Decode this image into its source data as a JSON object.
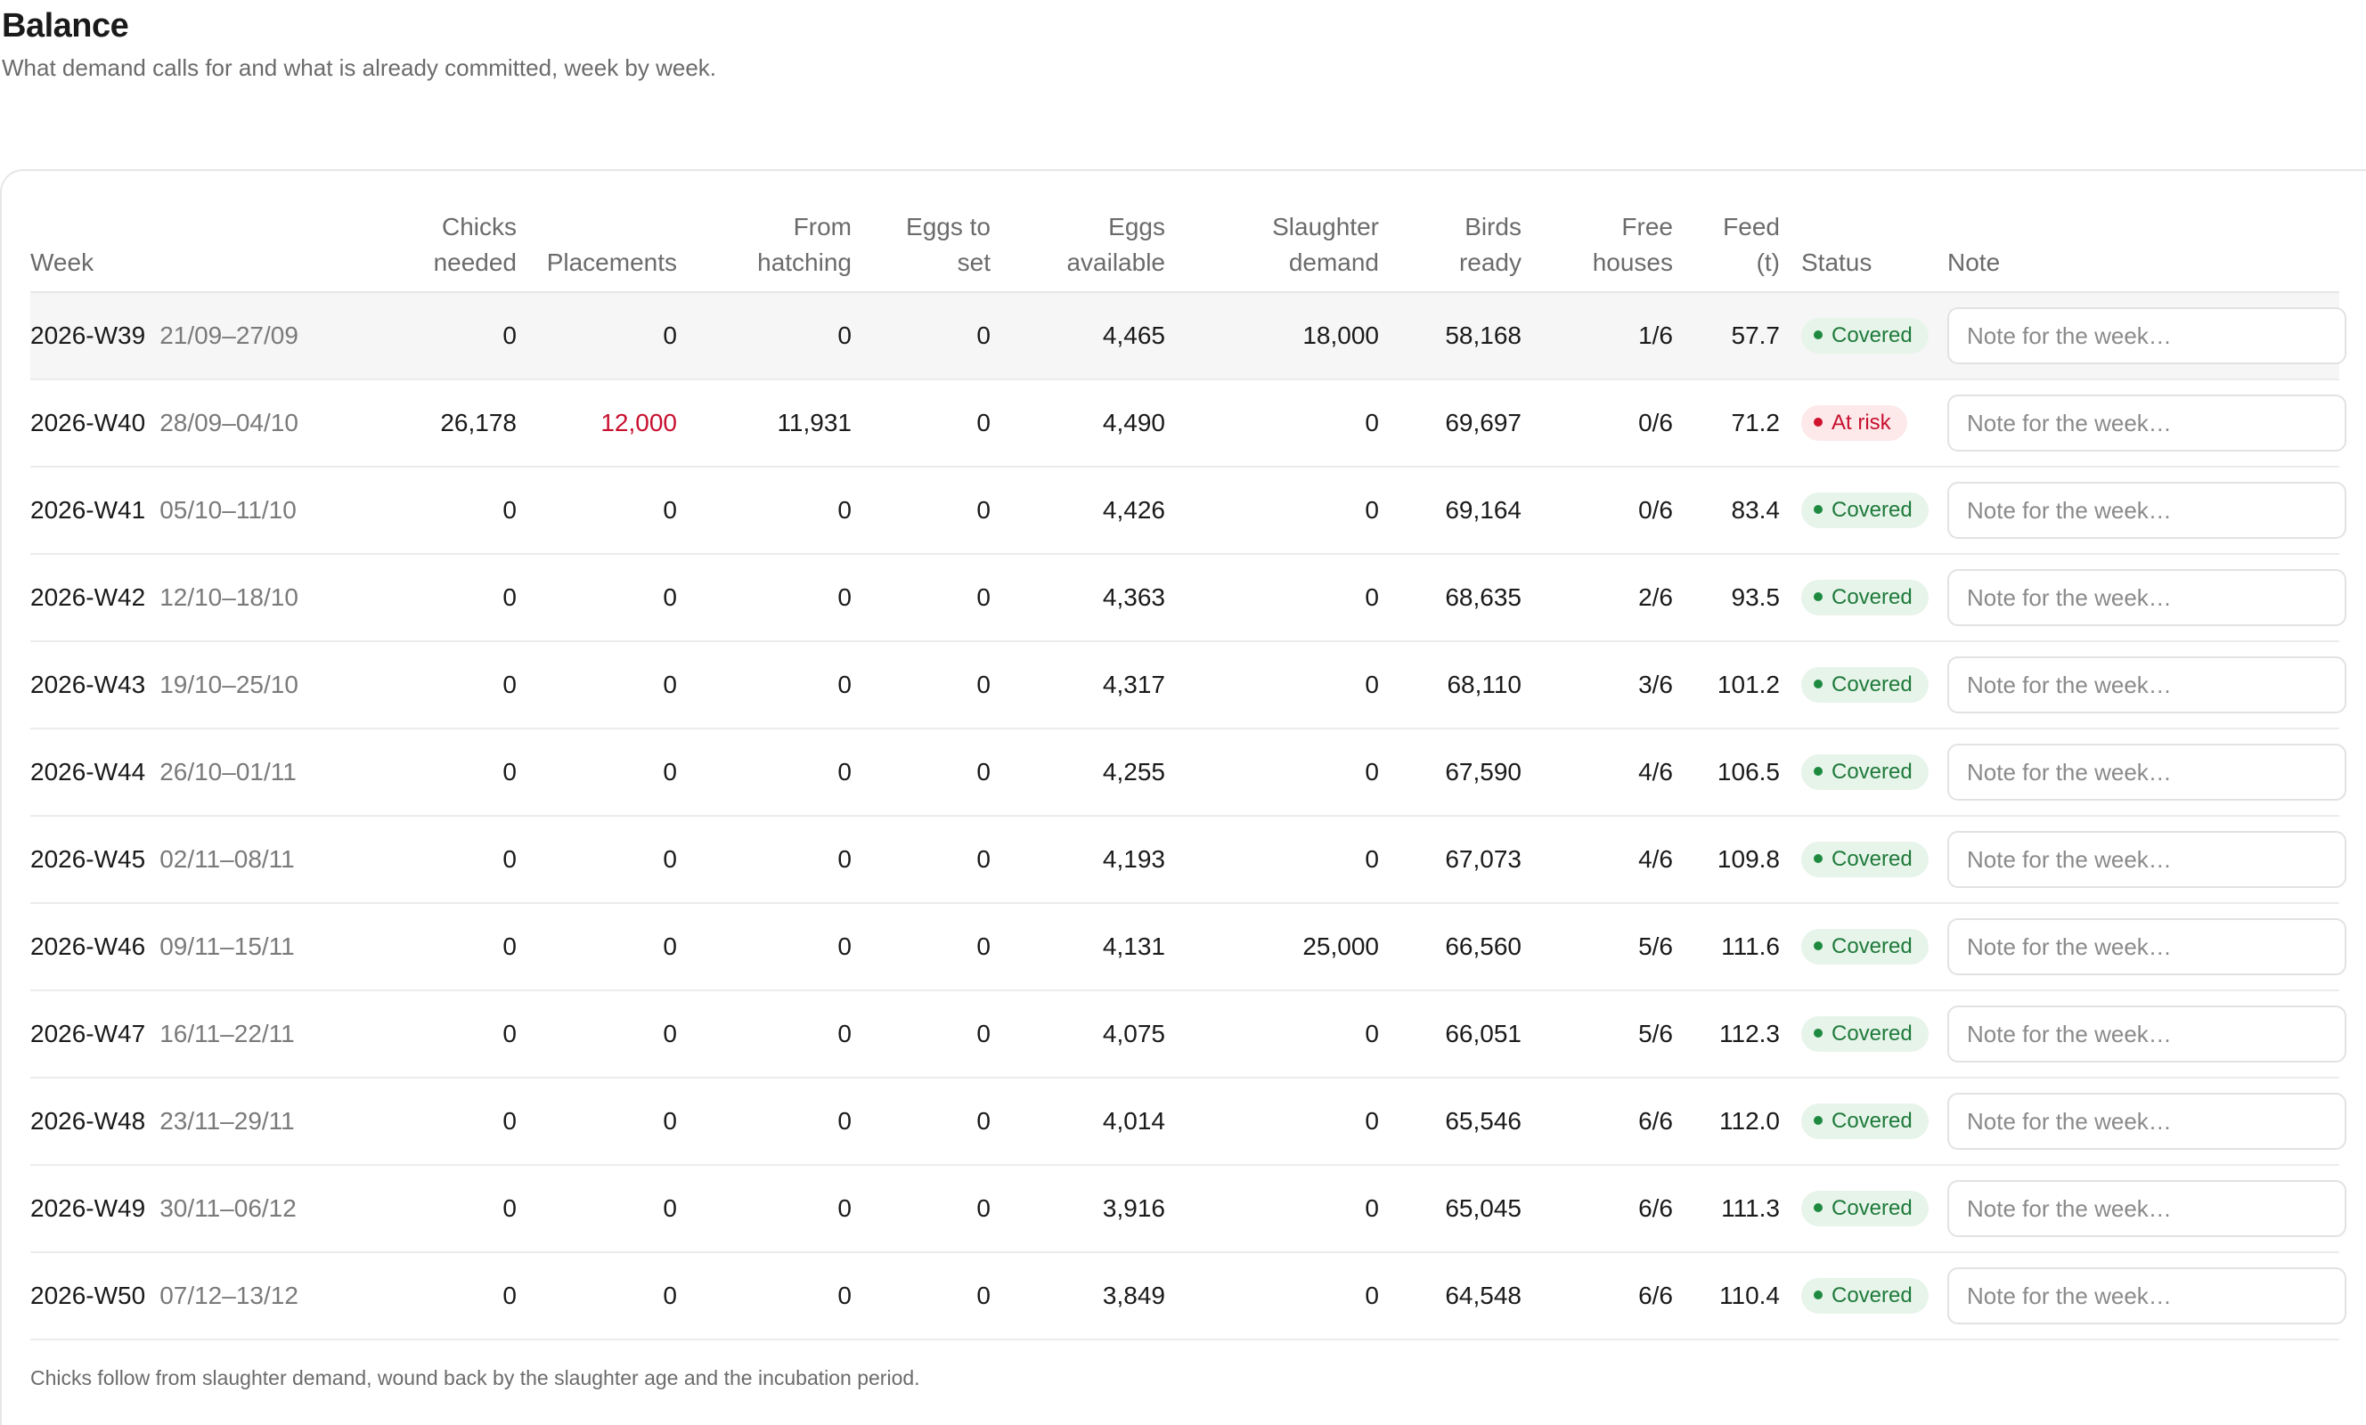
{
  "header": {
    "title": "Balance",
    "subtitle": "What demand calls for and what is already committed, week by week."
  },
  "table": {
    "columns": {
      "week": "Week",
      "chicks_needed": [
        "Chicks",
        "needed"
      ],
      "placements": "Placements",
      "from_hatching": [
        "From",
        "hatching"
      ],
      "eggs_to_set": [
        "Eggs to",
        "set"
      ],
      "eggs_available": [
        "Eggs",
        "available"
      ],
      "slaughter_demand": [
        "Slaughter",
        "demand"
      ],
      "birds_ready": [
        "Birds",
        "ready"
      ],
      "free_houses": [
        "Free",
        "houses"
      ],
      "feed": [
        "Feed",
        "(t)"
      ],
      "status": "Status",
      "note": "Note"
    },
    "note_placeholder": "Note for the week…",
    "colors": {
      "alert": "#c8102e",
      "covered_bg": "#e7f4ea",
      "covered_text": "#1e7a3a",
      "risk_bg": "#fde9ea",
      "risk_text": "#c8102e"
    },
    "rows": [
      {
        "week": "2026-W39",
        "range": "21/09–27/09",
        "chicks_needed": "0",
        "placements": "0",
        "placements_alert": false,
        "from_hatching": "0",
        "eggs_to_set": "0",
        "eggs_available": "4,465",
        "slaughter_demand": "18,000",
        "birds_ready": "58,168",
        "free_houses": "1/6",
        "feed": "57.7",
        "status": "Covered",
        "status_kind": "ok",
        "note": ""
      },
      {
        "week": "2026-W40",
        "range": "28/09–04/10",
        "chicks_needed": "26,178",
        "placements": "12,000",
        "placements_alert": true,
        "from_hatching": "11,931",
        "eggs_to_set": "0",
        "eggs_available": "4,490",
        "slaughter_demand": "0",
        "birds_ready": "69,697",
        "free_houses": "0/6",
        "feed": "71.2",
        "status": "At risk",
        "status_kind": "risk",
        "note": ""
      },
      {
        "week": "2026-W41",
        "range": "05/10–11/10",
        "chicks_needed": "0",
        "placements": "0",
        "placements_alert": false,
        "from_hatching": "0",
        "eggs_to_set": "0",
        "eggs_available": "4,426",
        "slaughter_demand": "0",
        "birds_ready": "69,164",
        "free_houses": "0/6",
        "feed": "83.4",
        "status": "Covered",
        "status_kind": "ok",
        "note": ""
      },
      {
        "week": "2026-W42",
        "range": "12/10–18/10",
        "chicks_needed": "0",
        "placements": "0",
        "placements_alert": false,
        "from_hatching": "0",
        "eggs_to_set": "0",
        "eggs_available": "4,363",
        "slaughter_demand": "0",
        "birds_ready": "68,635",
        "free_houses": "2/6",
        "feed": "93.5",
        "status": "Covered",
        "status_kind": "ok",
        "note": ""
      },
      {
        "week": "2026-W43",
        "range": "19/10–25/10",
        "chicks_needed": "0",
        "placements": "0",
        "placements_alert": false,
        "from_hatching": "0",
        "eggs_to_set": "0",
        "eggs_available": "4,317",
        "slaughter_demand": "0",
        "birds_ready": "68,110",
        "free_houses": "3/6",
        "feed": "101.2",
        "status": "Covered",
        "status_kind": "ok",
        "note": ""
      },
      {
        "week": "2026-W44",
        "range": "26/10–01/11",
        "chicks_needed": "0",
        "placements": "0",
        "placements_alert": false,
        "from_hatching": "0",
        "eggs_to_set": "0",
        "eggs_available": "4,255",
        "slaughter_demand": "0",
        "birds_ready": "67,590",
        "free_houses": "4/6",
        "feed": "106.5",
        "status": "Covered",
        "status_kind": "ok",
        "note": ""
      },
      {
        "week": "2026-W45",
        "range": "02/11–08/11",
        "chicks_needed": "0",
        "placements": "0",
        "placements_alert": false,
        "from_hatching": "0",
        "eggs_to_set": "0",
        "eggs_available": "4,193",
        "slaughter_demand": "0",
        "birds_ready": "67,073",
        "free_houses": "4/6",
        "feed": "109.8",
        "status": "Covered",
        "status_kind": "ok",
        "note": ""
      },
      {
        "week": "2026-W46",
        "range": "09/11–15/11",
        "chicks_needed": "0",
        "placements": "0",
        "placements_alert": false,
        "from_hatching": "0",
        "eggs_to_set": "0",
        "eggs_available": "4,131",
        "slaughter_demand": "25,000",
        "birds_ready": "66,560",
        "free_houses": "5/6",
        "feed": "111.6",
        "status": "Covered",
        "status_kind": "ok",
        "note": ""
      },
      {
        "week": "2026-W47",
        "range": "16/11–22/11",
        "chicks_needed": "0",
        "placements": "0",
        "placements_alert": false,
        "from_hatching": "0",
        "eggs_to_set": "0",
        "eggs_available": "4,075",
        "slaughter_demand": "0",
        "birds_ready": "66,051",
        "free_houses": "5/6",
        "feed": "112.3",
        "status": "Covered",
        "status_kind": "ok",
        "note": ""
      },
      {
        "week": "2026-W48",
        "range": "23/11–29/11",
        "chicks_needed": "0",
        "placements": "0",
        "placements_alert": false,
        "from_hatching": "0",
        "eggs_to_set": "0",
        "eggs_available": "4,014",
        "slaughter_demand": "0",
        "birds_ready": "65,546",
        "free_houses": "6/6",
        "feed": "112.0",
        "status": "Covered",
        "status_kind": "ok",
        "note": ""
      },
      {
        "week": "2026-W49",
        "range": "30/11–06/12",
        "chicks_needed": "0",
        "placements": "0",
        "placements_alert": false,
        "from_hatching": "0",
        "eggs_to_set": "0",
        "eggs_available": "3,916",
        "slaughter_demand": "0",
        "birds_ready": "65,045",
        "free_houses": "6/6",
        "feed": "111.3",
        "status": "Covered",
        "status_kind": "ok",
        "note": ""
      },
      {
        "week": "2026-W50",
        "range": "07/12–13/12",
        "chicks_needed": "0",
        "placements": "0",
        "placements_alert": false,
        "from_hatching": "0",
        "eggs_to_set": "0",
        "eggs_available": "3,849",
        "slaughter_demand": "0",
        "birds_ready": "64,548",
        "free_houses": "6/6",
        "feed": "110.4",
        "status": "Covered",
        "status_kind": "ok",
        "note": ""
      }
    ]
  },
  "footnote": "Chicks follow from slaughter demand, wound back by the slaughter age and the incubation period."
}
